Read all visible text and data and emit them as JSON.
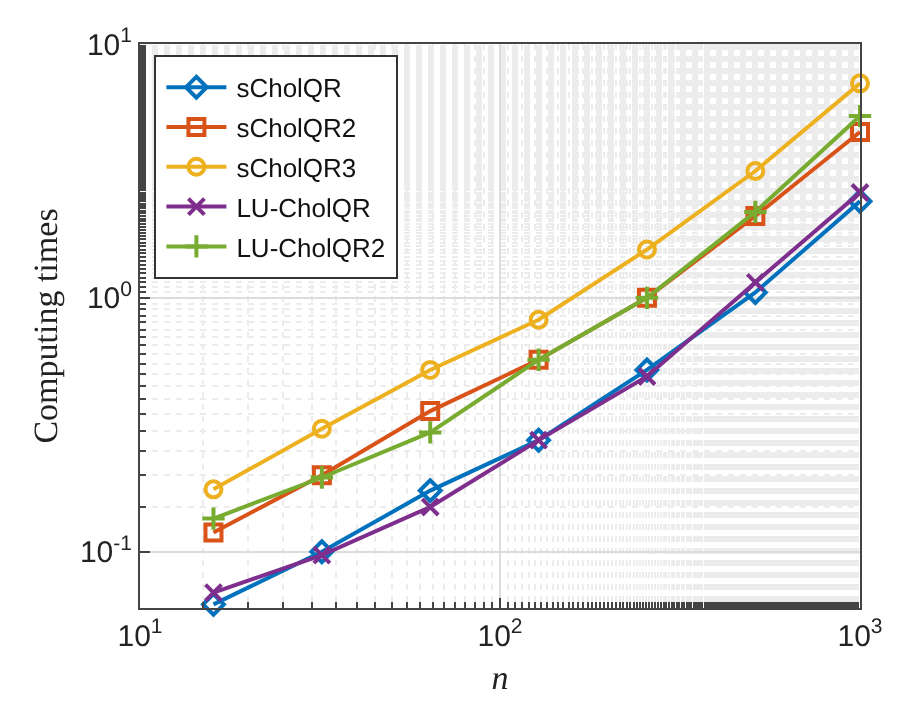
{
  "chart_data": {
    "type": "line",
    "xlabel": "n",
    "ylabel": "Computing times",
    "x": [
      16,
      32,
      64,
      128,
      256,
      512,
      1000
    ],
    "series": [
      {
        "name": "sCholQR",
        "color": "#0072bd",
        "marker": "diamond",
        "values": [
          0.062,
          0.1,
          0.174,
          0.275,
          0.52,
          1.05,
          2.4
        ]
      },
      {
        "name": "sCholQR2",
        "color": "#d95319",
        "marker": "square",
        "values": [
          0.119,
          0.2,
          0.358,
          0.57,
          1.0,
          2.1,
          4.5
        ]
      },
      {
        "name": "sCholQR3",
        "color": "#edb120",
        "marker": "circle",
        "values": [
          0.176,
          0.305,
          0.52,
          0.82,
          1.55,
          3.16,
          7.0
        ]
      },
      {
        "name": "LU-CholQR",
        "color": "#7e2f8e",
        "marker": "cross",
        "values": [
          0.069,
          0.097,
          0.15,
          0.275,
          0.49,
          1.15,
          2.6
        ]
      },
      {
        "name": "LU-CholQR2",
        "color": "#77ac30",
        "marker": "plus",
        "values": [
          0.135,
          0.196,
          0.295,
          0.57,
          1.0,
          2.18,
          5.2
        ]
      }
    ],
    "log": "xy",
    "xlim": [
      10,
      1000
    ],
    "ylim": [
      0.06,
      10
    ],
    "xticks": [
      {
        "value": 10,
        "label": "10$^{1}$"
      },
      {
        "value": 100,
        "label": "10$^{2}$"
      },
      {
        "value": 1000,
        "label": "10$^{3}$"
      }
    ],
    "yticks": [
      {
        "value": 0.1,
        "label": "10$^{-1}$"
      },
      {
        "value": 1,
        "label": "10$^{0}$"
      },
      {
        "value": 10,
        "label": "10$^{1}$"
      }
    ],
    "grid": true,
    "legend": "top left",
    "line_style": "solid"
  }
}
